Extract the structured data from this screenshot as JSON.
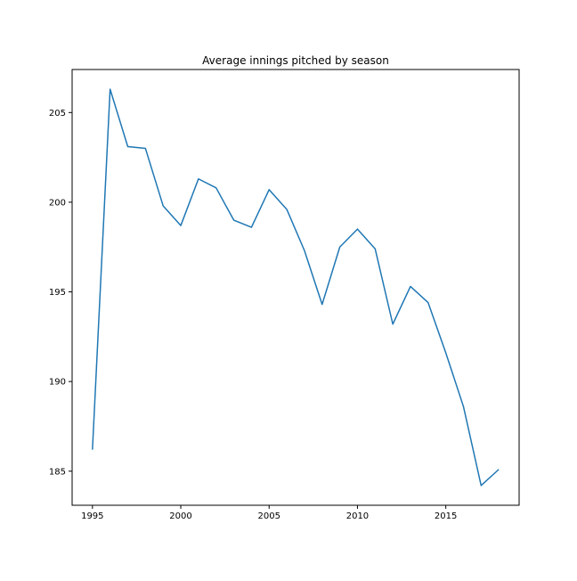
{
  "chart_data": {
    "type": "line",
    "title": "Average innings pitched by season",
    "xlabel": "",
    "ylabel": "",
    "x": [
      1995,
      1996,
      1997,
      1998,
      1999,
      2000,
      2001,
      2002,
      2003,
      2004,
      2005,
      2006,
      2007,
      2008,
      2009,
      2010,
      2011,
      2012,
      2013,
      2014,
      2015,
      2016,
      2017,
      2018
    ],
    "series": [
      {
        "values": [
          186.2,
          206.3,
          203.1,
          203.0,
          199.8,
          198.7,
          201.3,
          200.8,
          199.0,
          198.6,
          200.7,
          199.6,
          197.3,
          194.3,
          197.5,
          198.5,
          197.4,
          193.2,
          195.3,
          194.4,
          191.6,
          188.6,
          184.2,
          185.1
        ],
        "color": "#1f77b4"
      }
    ],
    "xlim": [
      1993.85,
      2019.15
    ],
    "ylim": [
      183.1,
      207.4
    ],
    "xticks": [
      1995,
      2000,
      2005,
      2010,
      2015
    ],
    "yticks": [
      185,
      190,
      195,
      200,
      205
    ],
    "xtick_labels": [
      "1995",
      "2000",
      "2005",
      "2010",
      "2015"
    ],
    "ytick_labels": [
      "185",
      "190",
      "195",
      "200",
      "205"
    ],
    "grid": false,
    "legend": "none"
  }
}
